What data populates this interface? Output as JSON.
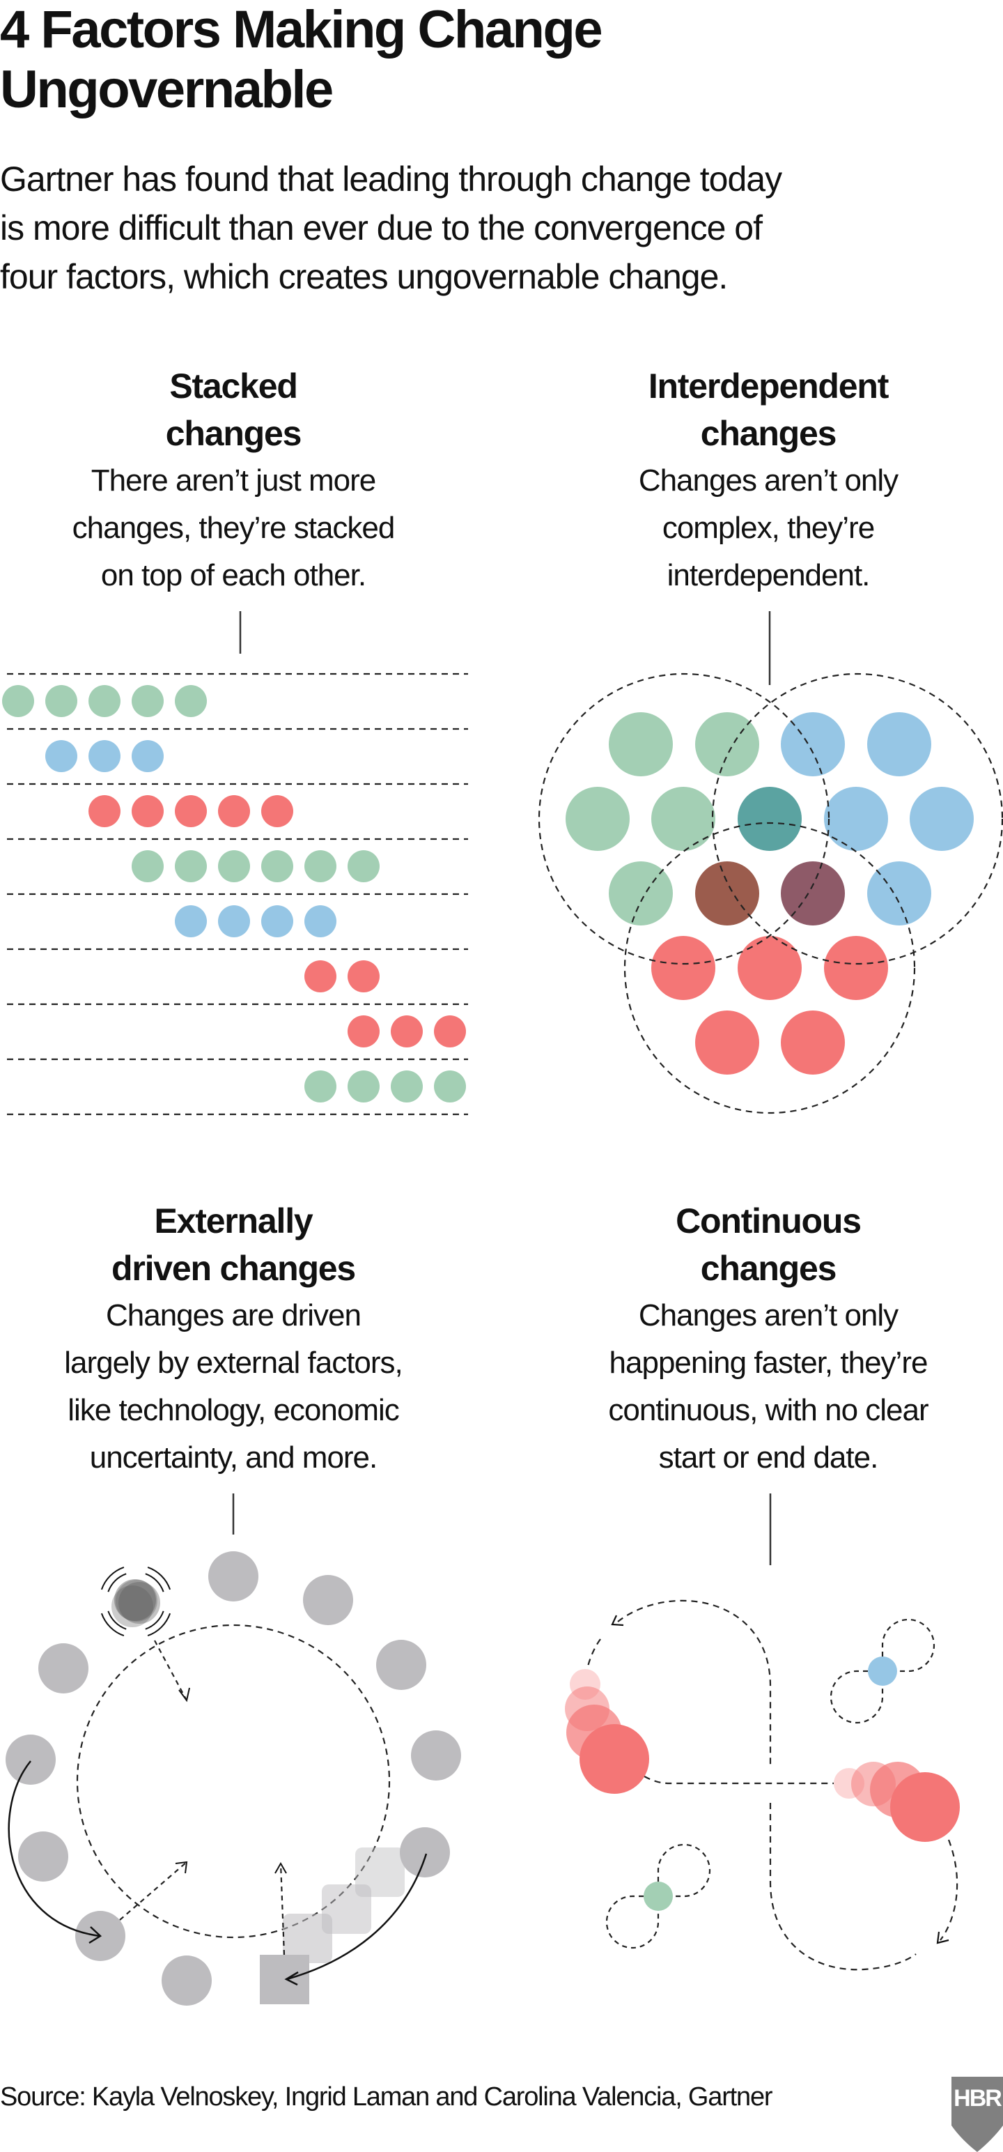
{
  "title": {
    "lines": [
      "4 Factors Making Change",
      "Ungovernable"
    ]
  },
  "intro": {
    "lines": [
      "Gartner has found that leading through change today",
      "is more difficult than ever due to the convergence of",
      "four factors, which creates ungovernable change."
    ]
  },
  "panels": [
    {
      "heading": [
        "Stacked",
        "changes"
      ],
      "description": [
        "There aren’t just more",
        "changes, they’re stacked",
        "on top of each other."
      ]
    },
    {
      "heading": [
        "Interdependent",
        "changes"
      ],
      "description": [
        "Changes aren’t only",
        "complex, they’re",
        "interdependent."
      ]
    },
    {
      "heading": [
        "Externally",
        "driven changes"
      ],
      "description": [
        "Changes are driven",
        "largely by external factors,",
        "like technology, economic",
        "uncertainty, and more."
      ]
    },
    {
      "heading": [
        "Continuous",
        "changes"
      ],
      "description": [
        "Changes aren’t only",
        "happening faster, they’re",
        "continuous, with no clear",
        "start or end date."
      ]
    }
  ],
  "colors": {
    "green": "#a3cfb4",
    "blue": "#96c6e5",
    "red": "#f47676",
    "teal": "#5ba3a1",
    "brown": "#9b5c4d",
    "plum": "#8e5a68",
    "grey": "#bdbcbf",
    "logo": "#808080"
  },
  "stacked_rows": [
    {
      "color": "green",
      "start": 0,
      "count": 5
    },
    {
      "color": "blue",
      "start": 1,
      "count": 3
    },
    {
      "color": "red",
      "start": 2,
      "count": 5
    },
    {
      "color": "green",
      "start": 3,
      "count": 6
    },
    {
      "color": "blue",
      "start": 4,
      "count": 4
    },
    {
      "color": "red",
      "start": 7,
      "count": 2
    },
    {
      "color": "red",
      "start": 8,
      "count": 3
    },
    {
      "color": "green",
      "start": 7,
      "count": 4
    }
  ],
  "source": "Source: Kayla Velnoskey, Ingrid Laman and Carolina Valencia, Gartner",
  "logo": "HBR"
}
